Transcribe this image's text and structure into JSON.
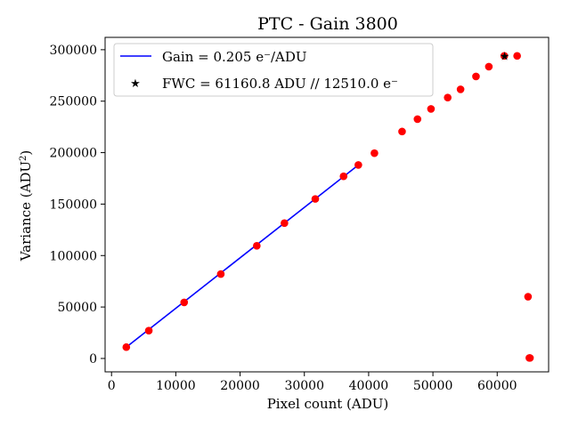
{
  "chart_data": {
    "type": "scatter",
    "title": "PTC - Gain 3800",
    "xlabel": "Pixel count (ADU)",
    "ylabel_main": "Variance (ADU",
    "ylabel_sup": "2",
    "ylabel_end": ")",
    "xlim": [
      -1000,
      68000
    ],
    "ylim": [
      -13000,
      312000
    ],
    "xticks": [
      0,
      10000,
      20000,
      30000,
      40000,
      50000,
      60000
    ],
    "yticks": [
      0,
      50000,
      100000,
      150000,
      200000,
      250000,
      300000
    ],
    "colors": {
      "points": "#ff0000",
      "fit_line": "#0000ff",
      "fwc_marker": "#0000ff"
    },
    "legend": {
      "placement": "upper-left",
      "gain_label": "Gain = 0.205 e⁻/ADU",
      "fwc_label": "FWC = 61160.8 ADU // 12510.0 e⁻"
    },
    "series": [
      {
        "points": [
          [
            2300,
            11000
          ],
          [
            5800,
            27000
          ],
          [
            11300,
            54500
          ],
          [
            17000,
            82000
          ],
          [
            22600,
            109500
          ],
          [
            26900,
            131500
          ],
          [
            31700,
            155000
          ],
          [
            36100,
            177000
          ],
          [
            38400,
            188000
          ],
          [
            40900,
            199500
          ],
          [
            45200,
            220500
          ],
          [
            47600,
            232500
          ],
          [
            49700,
            242500
          ],
          [
            52300,
            253500
          ],
          [
            54300,
            261500
          ],
          [
            56700,
            274000
          ],
          [
            58700,
            283500
          ],
          [
            61100,
            294000
          ],
          [
            63100,
            294000
          ],
          [
            64800,
            60000
          ],
          [
            65000,
            500
          ],
          [
            65100,
            500
          ]
        ]
      }
    ],
    "fit_line": {
      "x": [
        2300,
        38200
      ],
      "y": [
        11000,
        187000
      ]
    },
    "fwc_point": {
      "x": 61160.8,
      "y": 294000
    }
  }
}
